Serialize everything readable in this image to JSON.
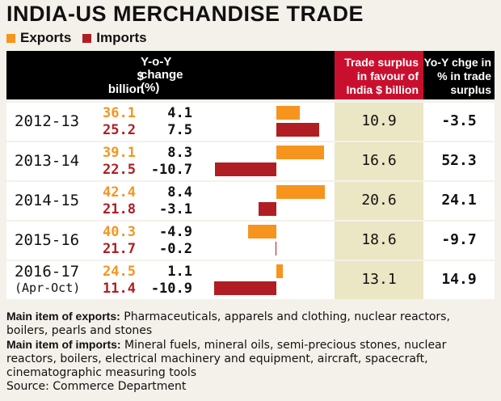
{
  "title": "INDIA-US MERCHANDISE TRADE",
  "legend": {
    "exports": "Exports",
    "imports": "Imports",
    "exports_color": "#f7941d",
    "imports_color": "#b01e23"
  },
  "headers": {
    "value_line1": "$",
    "value_line2": "billion",
    "change_line1": "Y-o-Y",
    "change_line2": "change",
    "change_line3": "(%)",
    "surplus_line1": "Trade surplus",
    "surplus_line2": "in favour of",
    "surplus_line3": "India $ billion",
    "pct_line1": "Yo-Y chge in",
    "pct_line2": "% in trade",
    "pct_line3": "surplus"
  },
  "chart_data": {
    "type": "table",
    "columns": [
      "Year",
      "Exports ($ billion)",
      "Imports ($ billion)",
      "Exports Y-o-Y change (%)",
      "Imports Y-o-Y change (%)",
      "Trade surplus in favour of India $ billion",
      "Yo-Y chge in % in trade surplus"
    ],
    "rows": [
      {
        "year": "2012-13",
        "year_sub": "",
        "exports": "36.1",
        "imports": "25.2",
        "exp_chg": "4.1",
        "imp_chg": "7.5",
        "exp_chg_v": 4.1,
        "imp_chg_v": 7.5,
        "surplus": "10.9",
        "surplus_chg": "-3.5"
      },
      {
        "year": "2013-14",
        "year_sub": "",
        "exports": "39.1",
        "imports": "22.5",
        "exp_chg": "8.3",
        "imp_chg": "-10.7",
        "exp_chg_v": 8.3,
        "imp_chg_v": -10.7,
        "surplus": "16.6",
        "surplus_chg": "52.3"
      },
      {
        "year": "2014-15",
        "year_sub": "",
        "exports": "42.4",
        "imports": "21.8",
        "exp_chg": "8.4",
        "imp_chg": "-3.1",
        "exp_chg_v": 8.4,
        "imp_chg_v": -3.1,
        "surplus": "20.6",
        "surplus_chg": "24.1"
      },
      {
        "year": "2015-16",
        "year_sub": "",
        "exports": "40.3",
        "imports": "21.7",
        "exp_chg": "-4.9",
        "imp_chg": "-0.2",
        "exp_chg_v": -4.9,
        "imp_chg_v": -0.2,
        "surplus": "18.6",
        "surplus_chg": "-9.7"
      },
      {
        "year": "2016-17",
        "year_sub": "(Apr-Oct)",
        "exports": "24.5",
        "imports": "11.4",
        "exp_chg": "1.1",
        "imp_chg": "-10.9",
        "exp_chg_v": 1.1,
        "imp_chg_v": -10.9,
        "surplus": "13.1",
        "surplus_chg": "14.9"
      }
    ]
  },
  "footer": {
    "exports_label": "Main item of exports:",
    "exports_text": "Pharmaceuticals, apparels and clothing, nuclear reactors, boilers, pearls and stones",
    "imports_label": "Main item of imports:",
    "imports_text": "Mineral fuels, mineral oils, semi-precious stones, nuclear reactors, boilers, electrical machinery and equipment, aircraft, spacecraft, cinematographic measuring tools",
    "source": "Source: Commerce Department"
  }
}
